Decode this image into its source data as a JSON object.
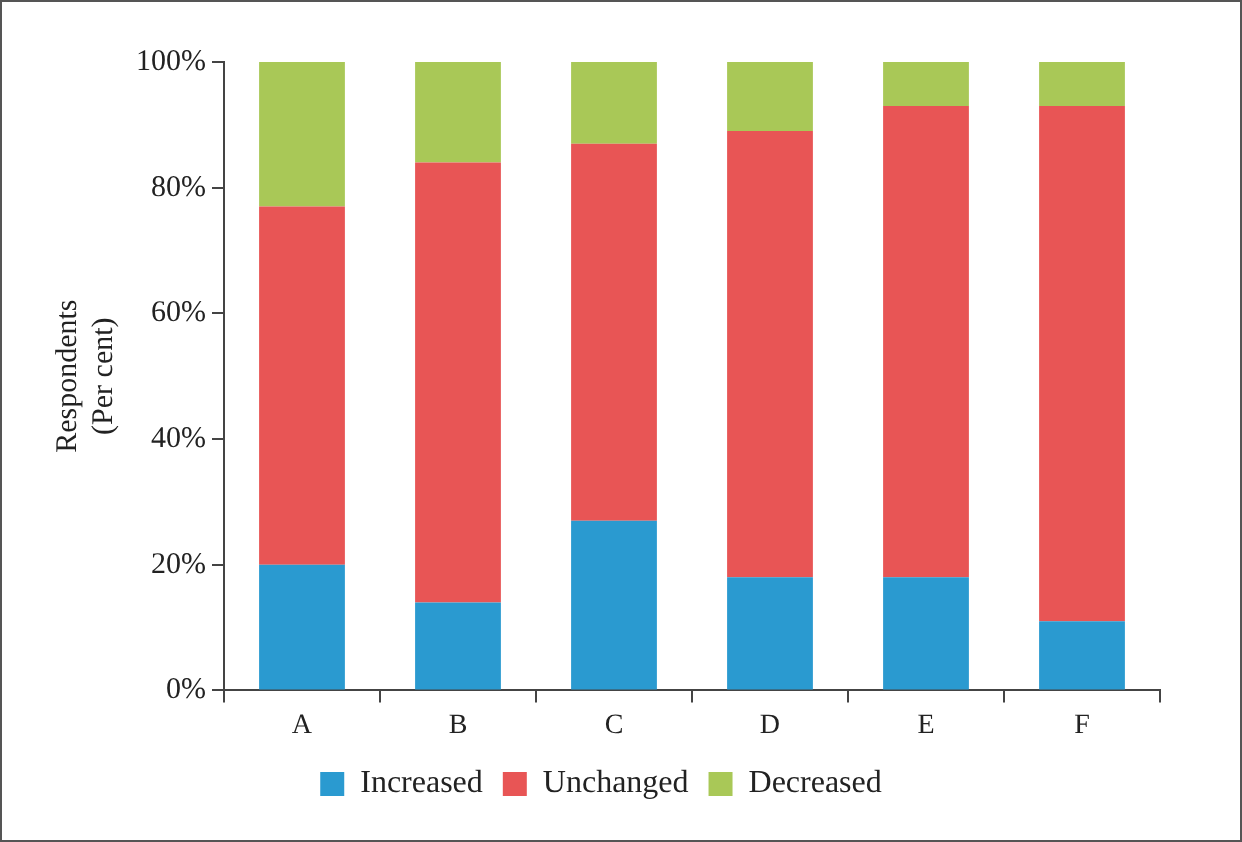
{
  "chart_data": {
    "type": "bar",
    "stacked": true,
    "ylabel": "Respondents\n(Per cent)",
    "categories": [
      "A",
      "B",
      "C",
      "D",
      "E",
      "F"
    ],
    "series": [
      {
        "name": "Increased",
        "color": "#2a9ad0",
        "values": [
          20,
          14,
          27,
          18,
          18,
          11
        ]
      },
      {
        "name": "Unchanged",
        "color": "#e85555",
        "values": [
          57,
          70,
          60,
          71,
          75,
          82
        ]
      },
      {
        "name": "Decreased",
        "color": "#a9c857",
        "values": [
          23,
          16,
          13,
          11,
          7,
          7
        ]
      }
    ],
    "ylim": [
      0,
      100
    ],
    "yticks": [
      {
        "value": 0,
        "label": "0%"
      },
      {
        "value": 20,
        "label": "20%"
      },
      {
        "value": 40,
        "label": "40%"
      },
      {
        "value": 60,
        "label": "60%"
      },
      {
        "value": 80,
        "label": "80%"
      },
      {
        "value": 100,
        "label": "100%"
      }
    ],
    "grid": false,
    "legend": "bottom"
  }
}
